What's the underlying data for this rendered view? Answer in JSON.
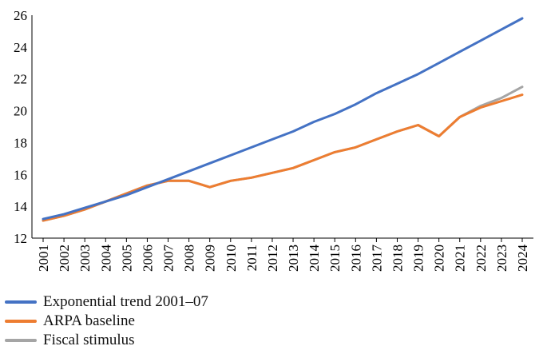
{
  "chart_data": {
    "type": "line",
    "title": "",
    "xlabel": "",
    "ylabel": "",
    "categories": [
      "2001",
      "2002",
      "2003",
      "2004",
      "2005",
      "2006",
      "2007",
      "2008",
      "2009",
      "2010",
      "2011",
      "2012",
      "2013",
      "2014",
      "2015",
      "2016",
      "2017",
      "2018",
      "2019",
      "2020",
      "2021",
      "2022",
      "2023",
      "2024"
    ],
    "ylim": [
      12,
      26
    ],
    "yticks": [
      12,
      14,
      16,
      18,
      20,
      22,
      24,
      26
    ],
    "grid": false,
    "legend_placement": "bottom-left",
    "series": [
      {
        "name": "Exponential trend 2001–07",
        "color": "#4472c4",
        "values": [
          13.2,
          13.5,
          13.9,
          14.3,
          14.7,
          15.2,
          15.7,
          16.2,
          16.7,
          17.2,
          17.7,
          18.2,
          18.7,
          19.3,
          19.8,
          20.4,
          21.1,
          21.7,
          22.3,
          23.0,
          23.7,
          24.4,
          25.1,
          25.8
        ]
      },
      {
        "name": "ARPA baseline",
        "color": "#ed7d31",
        "values": [
          13.1,
          13.4,
          13.8,
          14.3,
          14.8,
          15.3,
          15.6,
          15.6,
          15.2,
          15.6,
          15.8,
          16.1,
          16.4,
          16.9,
          17.4,
          17.7,
          18.2,
          18.7,
          19.1,
          18.4,
          19.6,
          20.2,
          20.6,
          21.0
        ]
      },
      {
        "name": "Fiscal stimulus",
        "color": "#a5a5a5",
        "values": [
          13.1,
          13.4,
          13.8,
          14.3,
          14.8,
          15.3,
          15.6,
          15.6,
          15.2,
          15.6,
          15.8,
          16.1,
          16.4,
          16.9,
          17.4,
          17.7,
          18.2,
          18.7,
          19.1,
          18.4,
          19.6,
          20.3,
          20.8,
          21.5
        ]
      }
    ]
  }
}
